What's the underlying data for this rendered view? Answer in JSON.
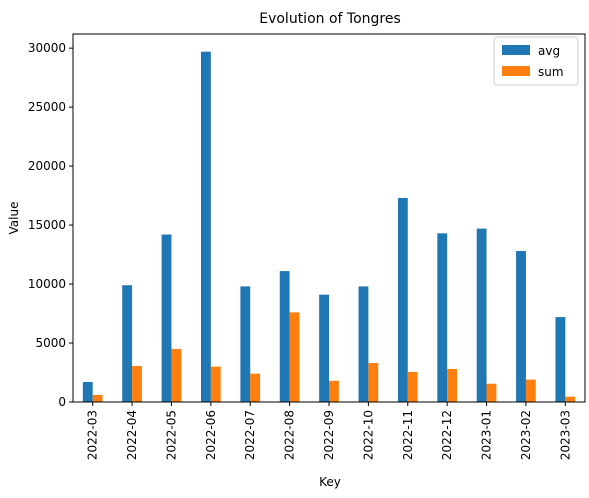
{
  "chart_data": {
    "type": "bar",
    "title": "Evolution of Tongres",
    "xlabel": "Key",
    "ylabel": "Value",
    "categories": [
      "2022-03",
      "2022-04",
      "2022-05",
      "2022-06",
      "2022-07",
      "2022-08",
      "2022-09",
      "2022-10",
      "2022-11",
      "2022-12",
      "2023-01",
      "2023-02",
      "2023-03"
    ],
    "series": [
      {
        "name": "avg",
        "color": "#1f77b4",
        "values": [
          1700,
          9900,
          14200,
          29700,
          9800,
          11100,
          9100,
          9800,
          17300,
          14300,
          14700,
          12800,
          7200
        ]
      },
      {
        "name": "sum",
        "color": "#ff7f0e",
        "values": [
          600,
          3050,
          4500,
          3000,
          2400,
          7600,
          1800,
          3300,
          2550,
          2800,
          1550,
          1900,
          450
        ]
      }
    ],
    "ylim": [
      0,
      31200
    ],
    "yticks": [
      0,
      5000,
      10000,
      15000,
      20000,
      25000,
      30000
    ],
    "grid": false,
    "legend": "top-right"
  }
}
